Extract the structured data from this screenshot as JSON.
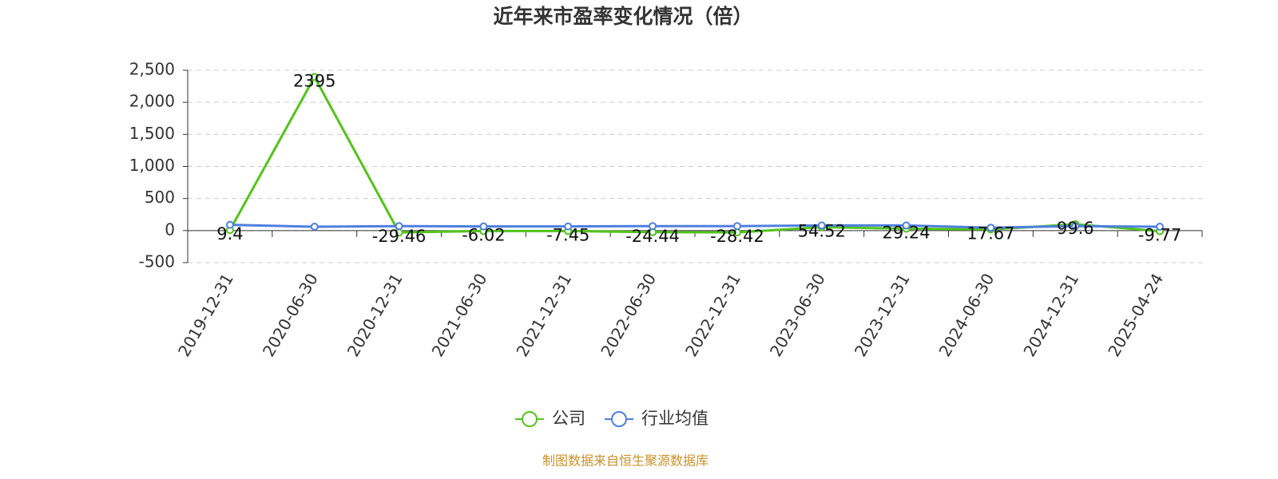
{
  "chart_data": {
    "type": "line",
    "title": "近年来市盈率变化情况（倍）",
    "source": "制图数据来自恒生聚源数据库",
    "categories": [
      "2019-12-31",
      "2020-06-30",
      "2020-12-31",
      "2021-06-30",
      "2021-12-31",
      "2022-06-30",
      "2022-12-31",
      "2023-06-30",
      "2023-12-31",
      "2024-06-30",
      "2024-12-31",
      "2025-04-24"
    ],
    "series": [
      {
        "name": "公司",
        "color": "#52c41a",
        "values": [
          9.4,
          2395,
          -29.46,
          -6.02,
          -7.45,
          -24.44,
          -28.42,
          54.52,
          29.24,
          17.67,
          99.6,
          -9.77
        ]
      },
      {
        "name": "行业均值",
        "color": "#4e7fe0",
        "values": [
          90,
          60,
          70,
          65,
          65,
          70,
          70,
          80,
          80,
          45,
          70,
          60
        ]
      }
    ],
    "ylim": [
      -500,
      2500
    ],
    "yticks": [
      -500,
      0,
      500,
      {
        "value": 1000,
        "label": "1,000"
      },
      {
        "value": 1500,
        "label": "1,500"
      },
      {
        "value": 2000,
        "label": "2,000"
      },
      {
        "value": 2500,
        "label": "2,500"
      }
    ],
    "grid": true
  }
}
